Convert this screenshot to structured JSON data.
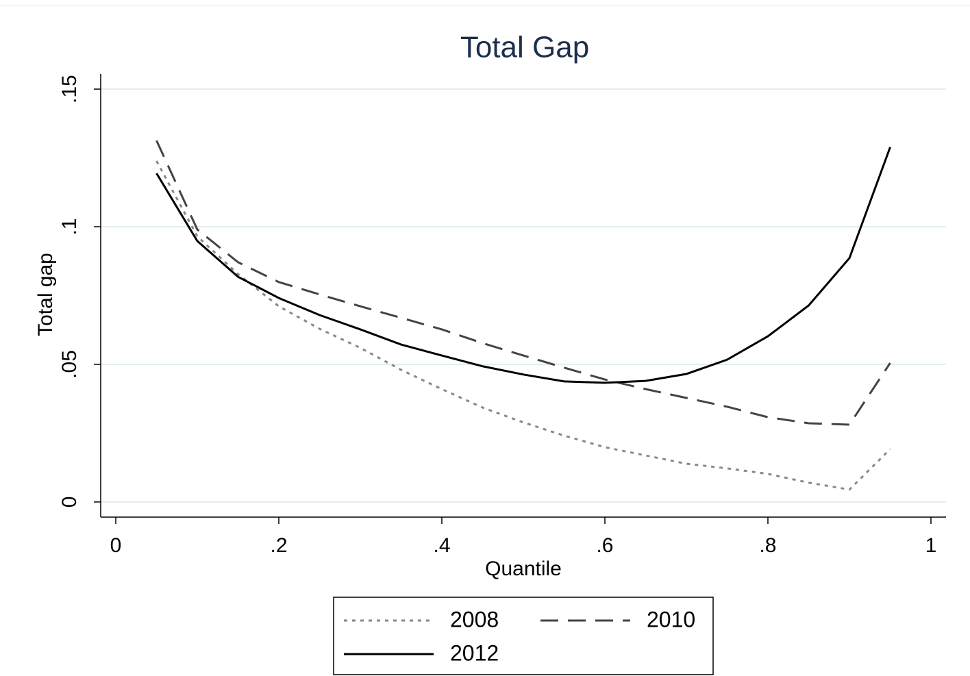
{
  "chart_data": {
    "type": "line",
    "title": "Total Gap",
    "x_label": "Quantile",
    "y_label": "Total gap",
    "x": [
      0.05,
      0.1,
      0.15,
      0.2,
      0.25,
      0.3,
      0.35,
      0.4,
      0.45,
      0.5,
      0.55,
      0.6,
      0.65,
      0.7,
      0.75,
      0.8,
      0.85,
      0.9,
      0.95
    ],
    "series": [
      {
        "name": "2008",
        "color": "#888888",
        "style": "dotted",
        "values": [
          0.1239,
          0.0965,
          0.0828,
          0.0711,
          0.0629,
          0.056,
          0.048,
          0.041,
          0.0343,
          0.0289,
          0.0241,
          0.0199,
          0.0169,
          0.0139,
          0.0122,
          0.0102,
          0.007,
          0.0045,
          0.0192
        ]
      },
      {
        "name": "2010",
        "color": "#444444",
        "style": "dashed",
        "values": [
          0.1313,
          0.099,
          0.0871,
          0.0799,
          0.0754,
          0.0711,
          0.0669,
          0.0627,
          0.0577,
          0.0532,
          0.0488,
          0.0445,
          0.041,
          0.0378,
          0.0346,
          0.0308,
          0.0286,
          0.0281,
          0.0505
        ]
      },
      {
        "name": "2012",
        "color": "#000000",
        "style": "solid",
        "values": [
          0.1194,
          0.0948,
          0.0818,
          0.0741,
          0.0679,
          0.0627,
          0.0572,
          0.0532,
          0.0493,
          0.0463,
          0.0438,
          0.0433,
          0.044,
          0.0465,
          0.0517,
          0.0602,
          0.0714,
          0.0886,
          0.1289
        ]
      }
    ],
    "xlim": [
      -0.0185,
      1.0185
    ],
    "ylim": [
      -0.0055,
      0.1555
    ],
    "xticks": [
      0,
      {
        "value": 0.2,
        "label": ".2"
      },
      {
        "value": 0.4,
        "label": ".4"
      },
      {
        "value": 0.6,
        "label": ".6"
      },
      {
        "value": 0.8,
        "label": ".8"
      },
      1
    ],
    "yticks": [
      0,
      {
        "value": 0.05,
        "label": ".05"
      },
      {
        "value": 0.1,
        "label": ".1"
      },
      {
        "value": 0.15,
        "label": ".15"
      }
    ],
    "grid": true,
    "legend": "bottom"
  }
}
